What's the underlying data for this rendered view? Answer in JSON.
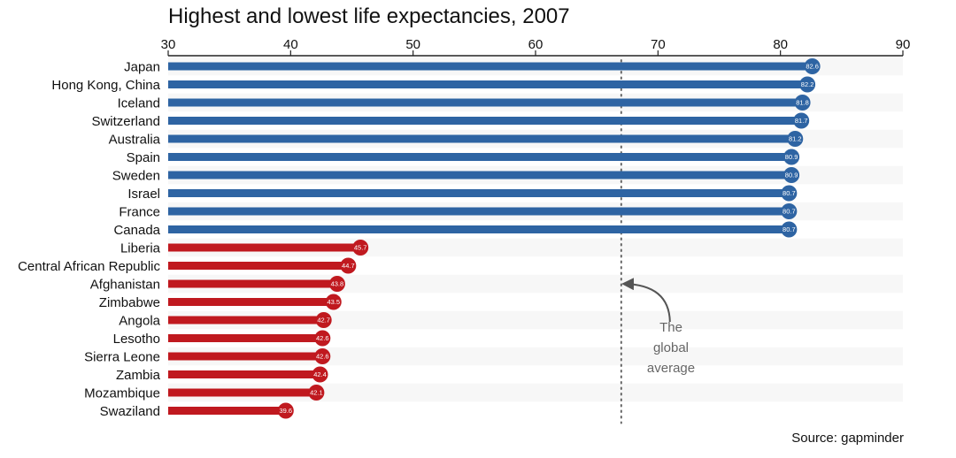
{
  "chart_data": {
    "type": "bar",
    "orientation": "horizontal",
    "title": "Highest and lowest life expectancies, 2007",
    "source": "Source: gapminder",
    "xlim": [
      30,
      90
    ],
    "xticks": [
      30,
      40,
      50,
      60,
      70,
      80,
      90
    ],
    "axis_position": "top",
    "reference_line": {
      "value": 67.0,
      "annotation_lines": [
        "The",
        "global",
        "average"
      ]
    },
    "colors": {
      "high": "#2E64A3",
      "low": "#C0191F"
    },
    "categories": [
      "Japan",
      "Hong Kong, China",
      "Iceland",
      "Switzerland",
      "Australia",
      "Spain",
      "Sweden",
      "Israel",
      "France",
      "Canada",
      "Liberia",
      "Central African Republic",
      "Afghanistan",
      "Zimbabwe",
      "Angola",
      "Lesotho",
      "Sierra Leone",
      "Zambia",
      "Mozambique",
      "Swaziland"
    ],
    "values": [
      82.6,
      82.2,
      81.8,
      81.7,
      81.2,
      80.9,
      80.9,
      80.7,
      80.7,
      80.7,
      45.7,
      44.7,
      43.8,
      43.5,
      42.7,
      42.6,
      42.6,
      42.4,
      42.1,
      39.6
    ],
    "value_labels": [
      "82.6",
      "82.2",
      "81.8",
      "81.7",
      "81.2",
      "80.9",
      "80.9",
      "80.7",
      "80.7",
      "80.7",
      "45.7",
      "44.7",
      "43.8",
      "43.5",
      "42.7",
      "42.6",
      "42.6",
      "42.4",
      "42.1",
      "39.6"
    ],
    "groups": [
      "high",
      "high",
      "high",
      "high",
      "high",
      "high",
      "high",
      "high",
      "high",
      "high",
      "low",
      "low",
      "low",
      "low",
      "low",
      "low",
      "low",
      "low",
      "low",
      "low"
    ]
  }
}
